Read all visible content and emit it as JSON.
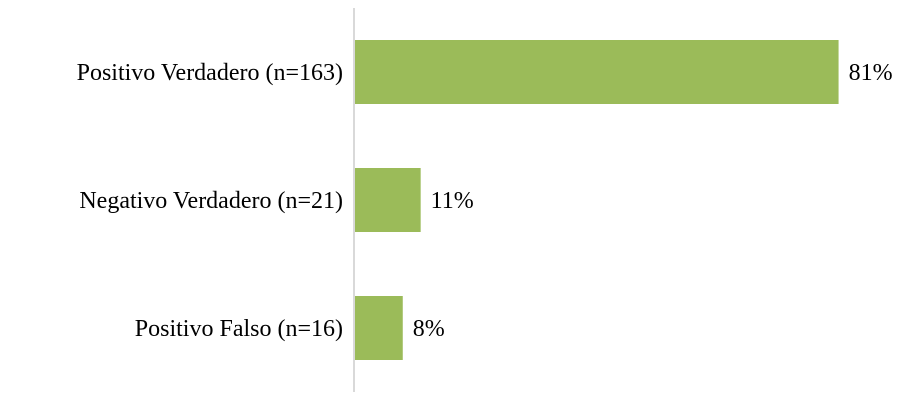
{
  "chart_data": {
    "type": "bar",
    "orientation": "horizontal",
    "title": "",
    "xlabel": "",
    "ylabel": "",
    "categories": [
      "Positivo Verdadero (n=163)",
      "Negativo Verdadero (n=21)",
      "Positivo Falso (n=16)"
    ],
    "values": [
      81,
      11,
      8
    ],
    "value_labels": [
      "81%",
      "11%",
      "8%"
    ],
    "unit": "%",
    "xlim": [
      0,
      100
    ],
    "grid": false,
    "legend": "none",
    "bar_color": "#9bbb59",
    "axis_color": "#d9d9d9"
  }
}
